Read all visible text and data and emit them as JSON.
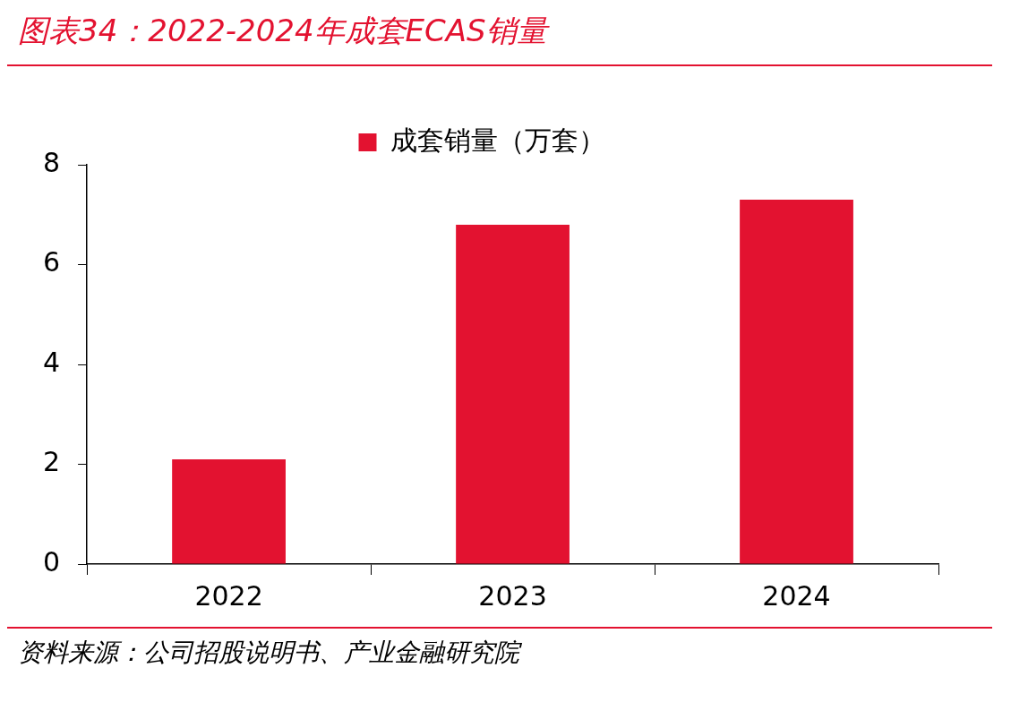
{
  "chart_data": {
    "type": "bar",
    "title": "图表34：2022-2024年成套ECAS销量",
    "categories": [
      "2022",
      "2023",
      "2024"
    ],
    "series": [
      {
        "name": "成套销量（万套）",
        "color": "#e31230",
        "values": [
          2.1,
          6.8,
          7.3
        ]
      }
    ],
    "ylim": [
      0,
      8
    ],
    "yticks": [
      0,
      2,
      4,
      6,
      8
    ],
    "grid": false,
    "legend": "top",
    "annotations": [
      "资料来源：公司招股说明书、产业金融研究院"
    ]
  }
}
